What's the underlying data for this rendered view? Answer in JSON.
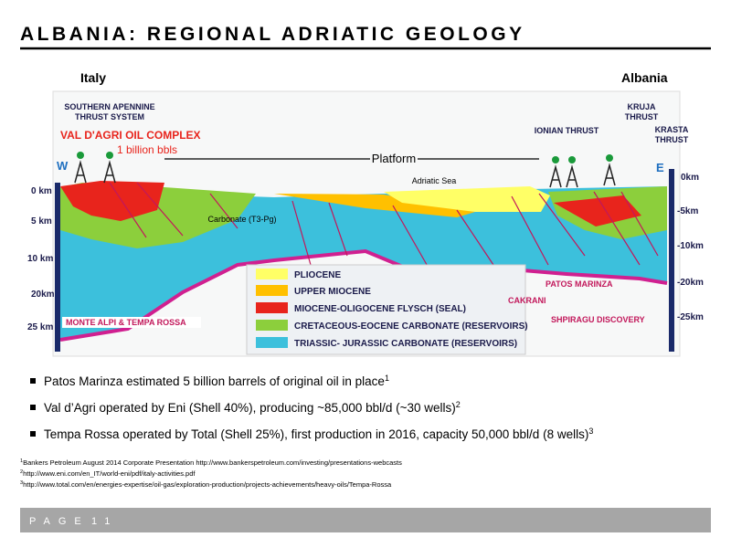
{
  "header": {
    "title": "ALBANIA: REGIONAL ADRIATIC GEOLOGY"
  },
  "diagram": {
    "regions": {
      "left": "Italy",
      "right": "Albania"
    },
    "labels": {
      "apennine_1": "SOUTHERN APENNINE",
      "apennine_2": "THRUST SYSTEM",
      "val_dagri": "VAL D'AGRI OIL COMPLEX",
      "reserves": "1 billion bbls",
      "west": "W",
      "east": "E",
      "platform": "Platform",
      "sea": "Adriatic Sea",
      "carbonate": "Carbonate (T3-Pg)",
      "ionian": "IONIAN THRUST",
      "kruja_1": "KRUJA",
      "kruja_2": "THRUST",
      "krasta_1": "KRASTA",
      "krasta_2": "THRUST"
    },
    "depth_left": [
      "0 km",
      "5 km",
      "10 km",
      "20km",
      "25 km"
    ],
    "depth_right": [
      "0km",
      "-5km",
      "-10km",
      "-20km",
      "-25km"
    ],
    "legend": [
      "PLIOCENE",
      "UPPER MIOCENE",
      "MIOCENE-OLIGOCENE FLYSCH (SEAL)",
      "CRETACEOUS-EOCENE CARBONATE (RESERVOIRS)",
      "TRIASSIC- JURASSIC CARBONATE (RESERVOIRS)"
    ],
    "fields": {
      "monte_alpi": "MONTE ALPI & TEMPA ROSSA",
      "cakrani": "CAKRANI",
      "patos": "PATOS MARINZA",
      "shpiragu": "SHPIRAGU DISCOVERY"
    }
  },
  "bullets": [
    {
      "text": "Patos Marinza estimated 5 billion barrels of original oil in place",
      "note": "1"
    },
    {
      "text": "Val d’Agri operated by Eni (Shell 40%), producing ~85,000 bbl/d (~30 wells)",
      "note": "2"
    },
    {
      "text": "Tempa Rossa operated by Total (Shell 25%), first production in 2016, capacity 50,000 bbl/d (8 wells)",
      "note": "3"
    }
  ],
  "footnotes": [
    {
      "marker": "1",
      "text": "Bankers Petroleum August 2014 Corporate Presentation http://www.bankerspetroleum.com/investing/presentations-webcasts"
    },
    {
      "marker": "2",
      "text": "http://www.eni.com/en_IT/world-eni/pdf/italy-activities.pdf"
    },
    {
      "marker": "3",
      "text": "http://www.total.com/en/energies-expertise/oil-gas/exploration-production/projects-achievements/heavy-oils/Tempa-Rossa"
    }
  ],
  "footer": {
    "page_label": "PAGE",
    "page_number": "11"
  }
}
